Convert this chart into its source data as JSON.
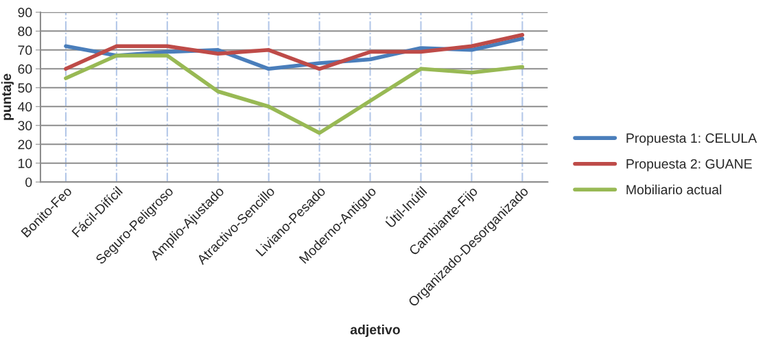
{
  "chart_data": {
    "type": "line",
    "xlabel": "adjetivo",
    "ylabel": "puntaje",
    "categories": [
      "Bonito-Feo",
      "Fácil-Difícil",
      "Seguro-Peligroso",
      "Amplio-Ajustado",
      "Atractivo-Sencillo",
      "Liviano-Pesado",
      "Moderno-Antiguo",
      "Útil-Inútil",
      "Cambiante-Fijo",
      "Organizado-Desorganizado"
    ],
    "series": [
      {
        "name": "Propuesta 1: CELULA",
        "color": "#4a7ebb",
        "values": [
          72,
          67,
          69,
          70,
          60,
          63,
          65,
          71,
          70,
          76
        ]
      },
      {
        "name": "Propuesta 2: GUANE",
        "color": "#be4b48",
        "values": [
          60,
          72,
          72,
          68,
          70,
          60,
          69,
          69,
          72,
          78
        ]
      },
      {
        "name": "Mobiliario actual",
        "color": "#98b954",
        "values": [
          55,
          67,
          67,
          48,
          40,
          26,
          43,
          60,
          58,
          61
        ]
      }
    ],
    "ylim": [
      0,
      90
    ],
    "yticks": [
      0,
      10,
      20,
      30,
      40,
      50,
      60,
      70,
      80,
      90
    ],
    "grid": true,
    "legend": "right",
    "marker": "none",
    "line_style": "solid"
  }
}
